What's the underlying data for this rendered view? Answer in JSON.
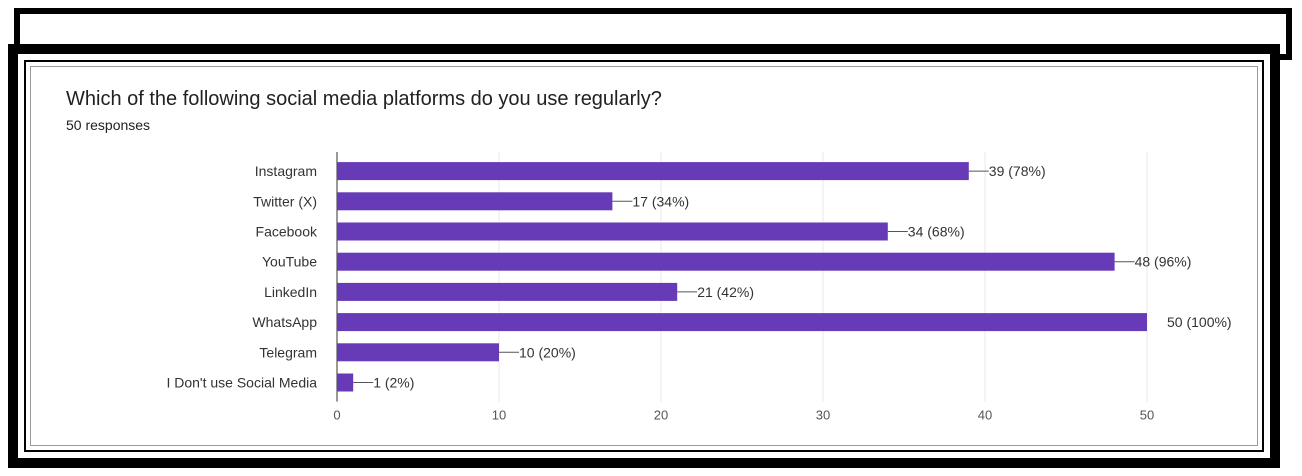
{
  "chart_data": {
    "type": "bar",
    "orientation": "horizontal",
    "title": "Which of the following social media platforms do you use regularly?",
    "subtitle": "50 responses",
    "categories": [
      "Instagram",
      "Twitter (X)",
      "Facebook",
      "YouTube",
      "LinkedIn",
      "WhatsApp",
      "Telegram",
      "I Don't use Social Media"
    ],
    "values": [
      39,
      17,
      34,
      48,
      21,
      50,
      10,
      1
    ],
    "data_labels": [
      "39 (78%)",
      "17 (34%)",
      "34 (68%)",
      "48 (96%)",
      "21 (42%)",
      "50 (100%)",
      "10 (20%)",
      "1 (2%)"
    ],
    "xlim": [
      0,
      50
    ],
    "xticks": [
      "0",
      "10",
      "20",
      "30",
      "40",
      "50"
    ],
    "grid": true,
    "colors": {
      "bar": "#673ab7",
      "grid": "#e8e8e8",
      "axis": "#333333"
    }
  }
}
